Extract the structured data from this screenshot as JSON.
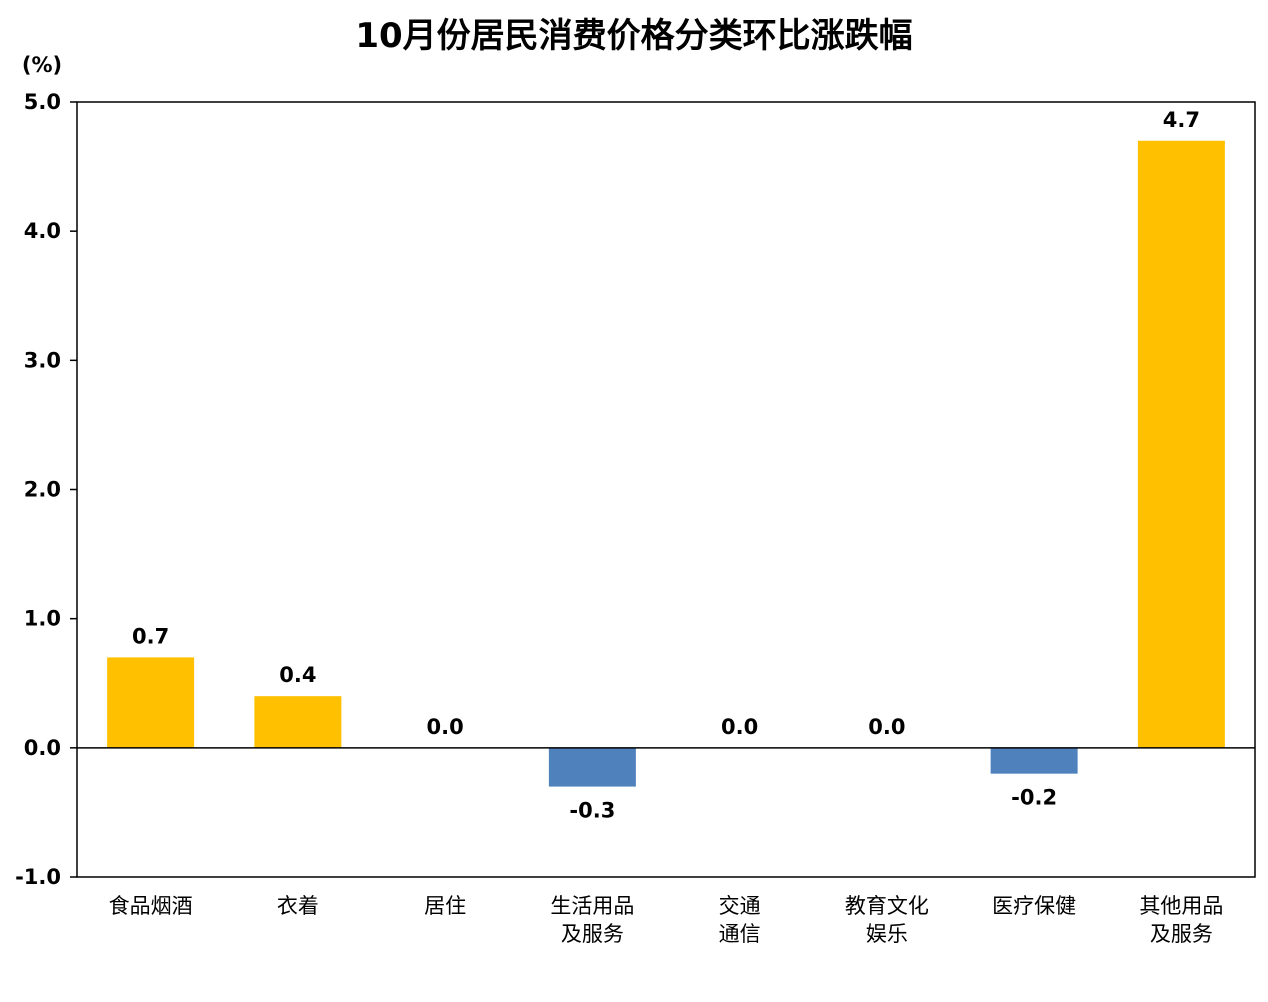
{
  "chart_data": {
    "type": "bar",
    "title": "10月份居民消费价格分类环比涨跌幅",
    "ylabel": "(%)",
    "xlabel": "",
    "ylim": [
      -1.0,
      5.0
    ],
    "yticks": [
      "5.0",
      "4.0",
      "3.0",
      "2.0",
      "1.0",
      "0.0",
      "-1.0"
    ],
    "ytick_values": [
      5,
      4,
      3,
      2,
      1,
      0,
      -1
    ],
    "grid": false,
    "categories": [
      [
        "食品烟酒"
      ],
      [
        "衣着"
      ],
      [
        "居住"
      ],
      [
        "生活用品",
        "及服务"
      ],
      [
        "交通",
        "通信"
      ],
      [
        "教育文化",
        "娱乐"
      ],
      [
        "医疗保健"
      ],
      [
        "其他用品",
        "及服务"
      ]
    ],
    "values": [
      0.7,
      0.4,
      0.0,
      -0.3,
      0.0,
      0.0,
      -0.2,
      4.7
    ],
    "data_labels": [
      "0.7",
      "0.4",
      "0.0",
      "-0.3",
      "0.0",
      "0.0",
      "-0.2",
      "4.7"
    ],
    "colors": {
      "positive": "#FFC000",
      "negative": "#4F81BD"
    }
  }
}
